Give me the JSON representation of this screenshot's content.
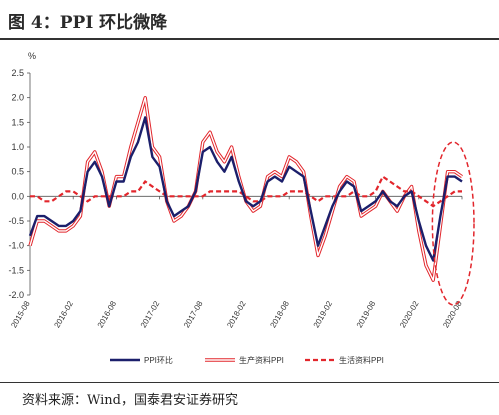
{
  "figure_title": "图 4：PPI 环比微降",
  "source_text": "资料来源：Wind，国泰君安证券研究",
  "colors": {
    "ppi_mom": "#1b1f6b",
    "producer": "#e2262c",
    "consumer": "#e2262c",
    "highlight": "#e2262c"
  },
  "chart_data": {
    "type": "line",
    "title": "",
    "xlabel": "",
    "ylabel": "%",
    "ylim": [
      -2.0,
      2.5
    ],
    "yticks": [
      "2.5",
      "2.0",
      "1.5",
      "1.0",
      "0.5",
      "0.0",
      "-0.5",
      "-1.0",
      "-1.5",
      "-2.0"
    ],
    "xtick_labels": [
      "2015-08",
      "2016-02",
      "2016-08",
      "2017-02",
      "2017-08",
      "2018-02",
      "2018-08",
      "2019-02",
      "2019-08",
      "2020-02",
      "2020-08"
    ],
    "x": [
      "2015-08",
      "2015-09",
      "2015-10",
      "2015-11",
      "2015-12",
      "2016-01",
      "2016-02",
      "2016-03",
      "2016-04",
      "2016-05",
      "2016-06",
      "2016-07",
      "2016-08",
      "2016-09",
      "2016-10",
      "2016-11",
      "2016-12",
      "2017-01",
      "2017-02",
      "2017-03",
      "2017-04",
      "2017-05",
      "2017-06",
      "2017-07",
      "2017-08",
      "2017-09",
      "2017-10",
      "2017-11",
      "2017-12",
      "2018-01",
      "2018-02",
      "2018-03",
      "2018-04",
      "2018-05",
      "2018-06",
      "2018-07",
      "2018-08",
      "2018-09",
      "2018-10",
      "2018-11",
      "2018-12",
      "2019-01",
      "2019-02",
      "2019-03",
      "2019-04",
      "2019-05",
      "2019-06",
      "2019-07",
      "2019-08",
      "2019-09",
      "2019-10",
      "2019-11",
      "2019-12",
      "2020-01",
      "2020-02",
      "2020-03",
      "2020-04",
      "2020-05",
      "2020-06",
      "2020-07",
      "2020-08"
    ],
    "series": [
      {
        "name": "PPI环比",
        "style": "solid",
        "values": [
          -0.8,
          -0.4,
          -0.4,
          -0.5,
          -0.6,
          -0.6,
          -0.5,
          -0.3,
          0.5,
          0.7,
          0.4,
          -0.2,
          0.3,
          0.3,
          0.8,
          1.1,
          1.6,
          0.8,
          0.6,
          -0.1,
          -0.4,
          -0.3,
          -0.2,
          0.1,
          0.9,
          1.0,
          0.7,
          0.5,
          0.8,
          0.3,
          -0.1,
          -0.2,
          -0.1,
          0.3,
          0.4,
          0.3,
          0.6,
          0.5,
          0.4,
          -0.3,
          -1.0,
          -0.6,
          -0.2,
          0.1,
          0.3,
          0.2,
          -0.3,
          -0.2,
          -0.1,
          0.1,
          -0.1,
          -0.2,
          0.0,
          0.1,
          -0.5,
          -1.0,
          -1.3,
          -0.4,
          0.4,
          0.4,
          0.3
        ]
      },
      {
        "name": "生产资料PPI",
        "style": "double",
        "values": [
          -1.0,
          -0.5,
          -0.5,
          -0.6,
          -0.7,
          -0.7,
          -0.6,
          -0.4,
          0.7,
          0.9,
          0.5,
          -0.2,
          0.4,
          0.4,
          1.0,
          1.5,
          2.0,
          1.0,
          0.8,
          -0.1,
          -0.5,
          -0.4,
          -0.2,
          0.1,
          1.1,
          1.3,
          0.9,
          0.7,
          1.0,
          0.4,
          -0.1,
          -0.3,
          -0.2,
          0.4,
          0.5,
          0.4,
          0.8,
          0.7,
          0.5,
          -0.4,
          -1.2,
          -0.8,
          -0.3,
          0.2,
          0.4,
          0.3,
          -0.4,
          -0.3,
          -0.2,
          0.1,
          -0.1,
          -0.3,
          0.0,
          0.2,
          -0.7,
          -1.4,
          -1.7,
          -0.6,
          0.5,
          0.5,
          0.4
        ]
      },
      {
        "name": "生活资料PPI",
        "style": "dashed",
        "values": [
          0.0,
          0.0,
          -0.1,
          -0.1,
          0.0,
          0.1,
          0.1,
          0.0,
          -0.1,
          0.0,
          0.0,
          0.0,
          0.0,
          0.0,
          0.1,
          0.1,
          0.3,
          0.2,
          0.1,
          0.0,
          0.0,
          0.0,
          0.0,
          0.0,
          0.0,
          0.1,
          0.1,
          0.1,
          0.1,
          0.1,
          0.0,
          -0.1,
          -0.1,
          0.0,
          0.0,
          0.0,
          0.1,
          0.1,
          0.1,
          0.0,
          -0.1,
          0.0,
          0.0,
          0.0,
          0.0,
          0.1,
          0.0,
          0.0,
          0.1,
          0.4,
          0.3,
          0.2,
          0.1,
          0.1,
          0.0,
          -0.1,
          -0.2,
          -0.1,
          0.0,
          0.1,
          0.1
        ]
      }
    ],
    "legend_position": "bottom",
    "grid": false,
    "annotation": "dashed ellipse highlighting latest months"
  }
}
